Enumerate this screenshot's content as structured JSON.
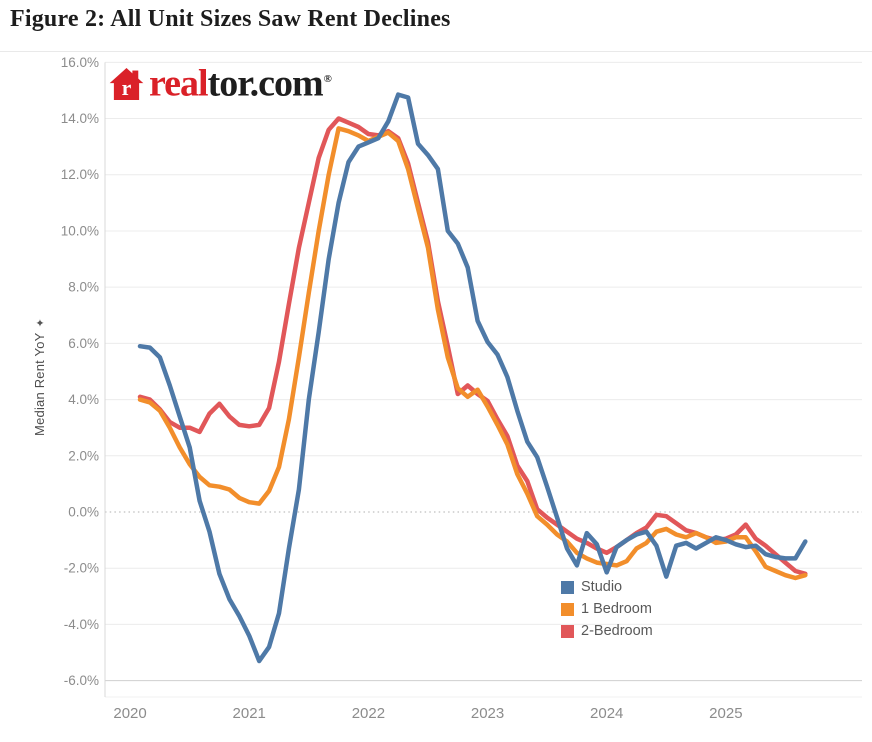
{
  "figure_title": "Figure 2: All Unit Sizes Saw Rent Declines",
  "logo": {
    "house_letter": "r",
    "brand_red": "real",
    "brand_dark": "tor.com",
    "registered_mark": "®"
  },
  "chart_data": {
    "type": "line",
    "title": "",
    "ylabel": "Median Rent YoY",
    "ylabel_icon": "✦",
    "xlabel": "",
    "ylim": [
      -6,
      16
    ],
    "ytick_step": 2,
    "grid": "horizontal solid light gray, zero line dotted",
    "legend_position": "inside bottom-right",
    "frequency": "monthly",
    "y_ticks": [
      {
        "v": 16,
        "label": "16.0%"
      },
      {
        "v": 14,
        "label": "14.0%"
      },
      {
        "v": 12,
        "label": "12.0%"
      },
      {
        "v": 10,
        "label": "10.0%"
      },
      {
        "v": 8,
        "label": "8.0%"
      },
      {
        "v": 6,
        "label": "6.0%"
      },
      {
        "v": 4,
        "label": "4.0%"
      },
      {
        "v": 2,
        "label": "2.0%"
      },
      {
        "v": 0,
        "label": "0.0%"
      },
      {
        "v": -2,
        "label": "-2.0%"
      },
      {
        "v": -4,
        "label": "-4.0%"
      },
      {
        "v": -6,
        "label": "-6.0%"
      }
    ],
    "x_ticks": [
      {
        "year": 2020,
        "label": "2020"
      },
      {
        "year": 2021,
        "label": "2021"
      },
      {
        "year": 2022,
        "label": "2022"
      },
      {
        "year": 2023,
        "label": "2023"
      },
      {
        "year": 2024,
        "label": "2024"
      },
      {
        "year": 2025,
        "label": "2025"
      }
    ],
    "x_months": [
      "2020-02",
      "2020-03",
      "2020-04",
      "2020-05",
      "2020-06",
      "2020-07",
      "2020-08",
      "2020-09",
      "2020-10",
      "2020-11",
      "2020-12",
      "2021-01",
      "2021-02",
      "2021-03",
      "2021-04",
      "2021-05",
      "2021-06",
      "2021-07",
      "2021-08",
      "2021-09",
      "2021-10",
      "2021-11",
      "2021-12",
      "2022-01",
      "2022-02",
      "2022-03",
      "2022-04",
      "2022-05",
      "2022-06",
      "2022-07",
      "2022-08",
      "2022-09",
      "2022-10",
      "2022-11",
      "2022-12",
      "2023-01",
      "2023-02",
      "2023-03",
      "2023-04",
      "2023-05",
      "2023-06",
      "2023-07",
      "2023-08",
      "2023-09",
      "2023-10",
      "2023-11",
      "2023-12",
      "2024-01",
      "2024-02",
      "2024-03",
      "2024-04",
      "2024-05",
      "2024-06",
      "2024-07",
      "2024-08",
      "2024-09",
      "2024-10",
      "2024-11",
      "2024-12",
      "2025-01",
      "2025-02",
      "2025-03",
      "2025-04",
      "2025-05",
      "2025-06",
      "2025-07",
      "2025-08",
      "2025-09"
    ],
    "series": [
      {
        "name": "Studio",
        "color": "#4e79a7",
        "values": [
          5.9,
          5.85,
          5.5,
          4.5,
          3.4,
          2.3,
          0.4,
          -0.7,
          -2.2,
          -3.1,
          -3.7,
          -4.4,
          -5.3,
          -4.8,
          -3.6,
          -1.3,
          0.8,
          4.0,
          6.4,
          9.0,
          11.0,
          12.45,
          13.0,
          13.15,
          13.3,
          13.9,
          14.85,
          14.75,
          13.1,
          12.7,
          12.2,
          10.0,
          9.55,
          8.7,
          6.8,
          6.05,
          5.6,
          4.8,
          3.6,
          2.5,
          1.95,
          0.9,
          -0.2,
          -1.3,
          -1.9,
          -0.75,
          -1.15,
          -2.15,
          -1.25,
          -1.0,
          -0.8,
          -0.7,
          -1.2,
          -2.3,
          -1.2,
          -1.1,
          -1.3,
          -1.1,
          -0.9,
          -1.0,
          -1.15,
          -1.25,
          -1.2,
          -1.5,
          -1.6,
          -1.65,
          -1.65,
          -1.05
        ]
      },
      {
        "name": "1 Bedroom",
        "color": "#f28e2b",
        "values": [
          4.0,
          3.9,
          3.6,
          3.0,
          2.3,
          1.7,
          1.25,
          0.95,
          0.9,
          0.8,
          0.5,
          0.35,
          0.3,
          0.75,
          1.6,
          3.3,
          5.5,
          7.8,
          10.0,
          12.0,
          13.65,
          13.55,
          13.4,
          13.2,
          13.35,
          13.5,
          13.2,
          12.2,
          10.8,
          9.4,
          7.2,
          5.5,
          4.4,
          4.1,
          4.35,
          3.75,
          3.1,
          2.4,
          1.35,
          0.65,
          -0.15,
          -0.45,
          -0.8,
          -1.05,
          -1.45,
          -1.65,
          -1.8,
          -1.85,
          -1.9,
          -1.75,
          -1.3,
          -1.1,
          -0.7,
          -0.6,
          -0.8,
          -0.9,
          -0.75,
          -0.9,
          -1.1,
          -1.05,
          -0.9,
          -0.9,
          -1.4,
          -1.95,
          -2.1,
          -2.25,
          -2.35,
          -2.25
        ]
      },
      {
        "name": "2-Bedroom",
        "color": "#e15759",
        "values": [
          4.1,
          4.0,
          3.65,
          3.2,
          3.0,
          3.0,
          2.85,
          3.5,
          3.85,
          3.4,
          3.1,
          3.05,
          3.1,
          3.7,
          5.35,
          7.4,
          9.4,
          11.0,
          12.6,
          13.6,
          14.0,
          13.85,
          13.7,
          13.45,
          13.4,
          13.55,
          13.3,
          12.4,
          11.0,
          9.6,
          7.5,
          5.9,
          4.2,
          4.5,
          4.2,
          3.95,
          3.3,
          2.7,
          1.65,
          1.1,
          0.1,
          -0.2,
          -0.45,
          -0.7,
          -0.95,
          -1.1,
          -1.3,
          -1.45,
          -1.25,
          -1.0,
          -0.75,
          -0.55,
          -0.1,
          -0.15,
          -0.4,
          -0.65,
          -0.75,
          -0.9,
          -1.0,
          -0.95,
          -0.8,
          -0.45,
          -0.95,
          -1.2,
          -1.5,
          -1.8,
          -2.1,
          -2.2
        ]
      }
    ]
  }
}
